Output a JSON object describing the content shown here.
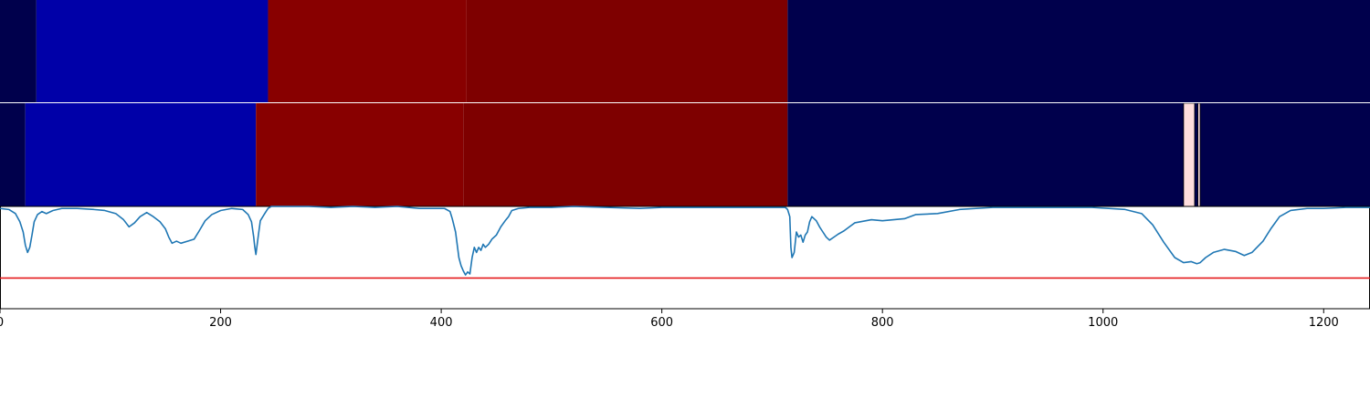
{
  "chart_data": {
    "type": "heatmap",
    "xlim": [
      0,
      1242
    ],
    "xticks": [
      0,
      200,
      400,
      600,
      800,
      1000,
      1200
    ],
    "xtick_labels": [
      "0",
      "200",
      "400",
      "600",
      "800",
      "1000",
      "1200"
    ],
    "grid": false,
    "legend": "none",
    "colors": {
      "dark_navy": "#00004c",
      "blue": "#0000a8",
      "red": "#880000",
      "dark_red": "#7e0000",
      "pink": "#ffdede",
      "line": "#1f77b4",
      "threshold": "#e41a1c",
      "frame": "#000000"
    },
    "heatmap_rows": [
      {
        "segments": [
          {
            "start": 0,
            "end": 33,
            "color": "dark_navy"
          },
          {
            "start": 33,
            "end": 243,
            "color": "blue"
          },
          {
            "start": 243,
            "end": 423,
            "color": "red"
          },
          {
            "start": 423,
            "end": 714,
            "color": "dark_red"
          },
          {
            "start": 714,
            "end": 1242,
            "color": "dark_navy"
          }
        ]
      },
      {
        "segments": [
          {
            "start": 0,
            "end": 23,
            "color": "dark_navy"
          },
          {
            "start": 23,
            "end": 232,
            "color": "blue"
          },
          {
            "start": 232,
            "end": 420,
            "color": "red"
          },
          {
            "start": 420,
            "end": 714,
            "color": "dark_red"
          },
          {
            "start": 714,
            "end": 1073,
            "color": "dark_navy"
          },
          {
            "start": 1073,
            "end": 1083,
            "color": "pink"
          },
          {
            "start": 1083,
            "end": 1086,
            "color": "dark_navy"
          },
          {
            "start": 1086,
            "end": 1088,
            "color": "pink"
          },
          {
            "start": 1088,
            "end": 1242,
            "color": "dark_navy"
          }
        ]
      }
    ],
    "line_plot": {
      "ylim": [
        0,
        1
      ],
      "threshold": 0.3,
      "series": [
        {
          "points": [
            [
              0,
              0.98
            ],
            [
              8,
              0.97
            ],
            [
              14,
              0.93
            ],
            [
              18,
              0.85
            ],
            [
              21,
              0.75
            ],
            [
              23,
              0.62
            ],
            [
              25,
              0.55
            ],
            [
              27,
              0.6
            ],
            [
              29,
              0.72
            ],
            [
              31,
              0.85
            ],
            [
              34,
              0.92
            ],
            [
              38,
              0.95
            ],
            [
              42,
              0.93
            ],
            [
              48,
              0.96
            ],
            [
              56,
              0.98
            ],
            [
              70,
              0.98
            ],
            [
              85,
              0.97
            ],
            [
              95,
              0.96
            ],
            [
              105,
              0.93
            ],
            [
              112,
              0.87
            ],
            [
              117,
              0.8
            ],
            [
              122,
              0.84
            ],
            [
              127,
              0.9
            ],
            [
              133,
              0.94
            ],
            [
              139,
              0.9
            ],
            [
              145,
              0.85
            ],
            [
              150,
              0.78
            ],
            [
              153,
              0.7
            ],
            [
              156,
              0.64
            ],
            [
              160,
              0.66
            ],
            [
              164,
              0.64
            ],
            [
              170,
              0.66
            ],
            [
              176,
              0.68
            ],
            [
              180,
              0.75
            ],
            [
              186,
              0.86
            ],
            [
              192,
              0.92
            ],
            [
              200,
              0.96
            ],
            [
              210,
              0.98
            ],
            [
              220,
              0.97
            ],
            [
              225,
              0.92
            ],
            [
              228,
              0.85
            ],
            [
              230,
              0.7
            ],
            [
              231,
              0.6
            ],
            [
              232,
              0.53
            ],
            [
              234,
              0.7
            ],
            [
              236,
              0.86
            ],
            [
              240,
              0.93
            ],
            [
              243,
              0.98
            ],
            [
              246,
              1.0
            ],
            [
              260,
              1.0
            ],
            [
              280,
              1.0
            ],
            [
              300,
              0.99
            ],
            [
              320,
              1.0
            ],
            [
              340,
              0.99
            ],
            [
              360,
              1.0
            ],
            [
              380,
              0.98
            ],
            [
              395,
              0.98
            ],
            [
              403,
              0.98
            ],
            [
              408,
              0.95
            ],
            [
              410,
              0.88
            ],
            [
              413,
              0.75
            ],
            [
              416,
              0.5
            ],
            [
              418,
              0.42
            ],
            [
              420,
              0.37
            ],
            [
              422,
              0.33
            ],
            [
              424,
              0.36
            ],
            [
              426,
              0.34
            ],
            [
              428,
              0.5
            ],
            [
              430,
              0.6
            ],
            [
              432,
              0.55
            ],
            [
              434,
              0.6
            ],
            [
              436,
              0.57
            ],
            [
              438,
              0.63
            ],
            [
              440,
              0.6
            ],
            [
              443,
              0.63
            ],
            [
              446,
              0.68
            ],
            [
              450,
              0.72
            ],
            [
              454,
              0.8
            ],
            [
              458,
              0.86
            ],
            [
              461,
              0.9
            ],
            [
              464,
              0.96
            ],
            [
              470,
              0.98
            ],
            [
              480,
              0.99
            ],
            [
              500,
              0.99
            ],
            [
              520,
              1.0
            ],
            [
              550,
              0.99
            ],
            [
              580,
              0.98
            ],
            [
              600,
              0.99
            ],
            [
              650,
              0.99
            ],
            [
              700,
              0.99
            ],
            [
              712,
              0.99
            ],
            [
              714,
              0.97
            ],
            [
              716,
              0.9
            ],
            [
              717,
              0.6
            ],
            [
              718,
              0.5
            ],
            [
              720,
              0.55
            ],
            [
              722,
              0.75
            ],
            [
              724,
              0.7
            ],
            [
              726,
              0.72
            ],
            [
              728,
              0.65
            ],
            [
              730,
              0.72
            ],
            [
              732,
              0.75
            ],
            [
              734,
              0.85
            ],
            [
              736,
              0.9
            ],
            [
              740,
              0.86
            ],
            [
              743,
              0.8
            ],
            [
              746,
              0.75
            ],
            [
              749,
              0.7
            ],
            [
              752,
              0.67
            ],
            [
              756,
              0.7
            ],
            [
              760,
              0.73
            ],
            [
              765,
              0.76
            ],
            [
              770,
              0.8
            ],
            [
              775,
              0.84
            ],
            [
              780,
              0.85
            ],
            [
              790,
              0.87
            ],
            [
              800,
              0.86
            ],
            [
              810,
              0.87
            ],
            [
              820,
              0.88
            ],
            [
              825,
              0.9
            ],
            [
              830,
              0.92
            ],
            [
              850,
              0.93
            ],
            [
              870,
              0.97
            ],
            [
              900,
              0.99
            ],
            [
              950,
              0.99
            ],
            [
              990,
              0.99
            ],
            [
              1020,
              0.97
            ],
            [
              1035,
              0.93
            ],
            [
              1045,
              0.82
            ],
            [
              1055,
              0.65
            ],
            [
              1065,
              0.5
            ],
            [
              1073,
              0.45
            ],
            [
              1080,
              0.46
            ],
            [
              1085,
              0.44
            ],
            [
              1088,
              0.45
            ],
            [
              1093,
              0.5
            ],
            [
              1100,
              0.55
            ],
            [
              1110,
              0.58
            ],
            [
              1120,
              0.56
            ],
            [
              1128,
              0.52
            ],
            [
              1135,
              0.55
            ],
            [
              1145,
              0.66
            ],
            [
              1152,
              0.78
            ],
            [
              1160,
              0.9
            ],
            [
              1170,
              0.96
            ],
            [
              1185,
              0.98
            ],
            [
              1200,
              0.98
            ],
            [
              1220,
              0.99
            ],
            [
              1242,
              0.99
            ]
          ]
        }
      ]
    }
  }
}
